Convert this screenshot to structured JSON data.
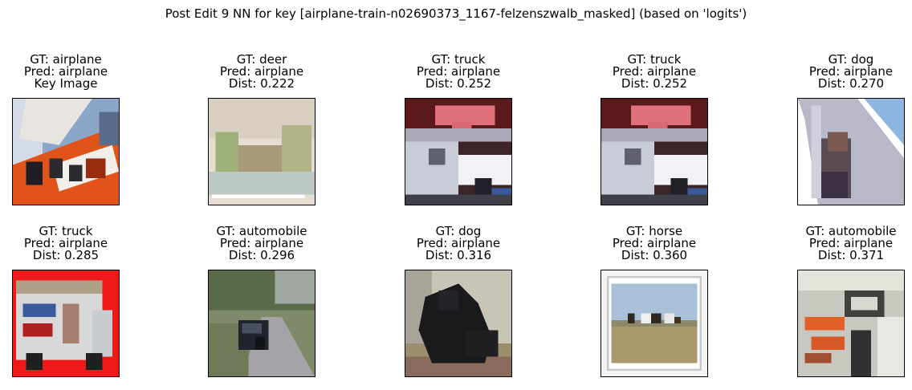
{
  "figure": {
    "title": "Post Edit 9 NN for key [airplane-train-n02690373_1167-felzenszwalb_masked] (based on 'logits')"
  },
  "panels": [
    {
      "gt": "GT: airplane",
      "pred": "Pred: airplane",
      "extra": "Key Image",
      "scene": "airplane-tail-icon"
    },
    {
      "gt": "GT: deer",
      "pred": "Pred: airplane",
      "extra": "Dist: 0.222",
      "scene": "pale-field-scene-icon"
    },
    {
      "gt": "GT: truck",
      "pred": "Pred: airplane",
      "extra": "Dist: 0.252",
      "scene": "truck-sign-icon"
    },
    {
      "gt": "GT: truck",
      "pred": "Pred: airplane",
      "extra": "Dist: 0.252",
      "scene": "truck-sign-icon"
    },
    {
      "gt": "GT: dog",
      "pred": "Pred: airplane",
      "extra": "Dist: 0.270",
      "scene": "dog-window-icon"
    },
    {
      "gt": "GT: truck",
      "pred": "Pred: airplane",
      "extra": "Dist: 0.285",
      "scene": "delivery-truck-icon"
    },
    {
      "gt": "GT: automobile",
      "pred": "Pred: airplane",
      "extra": "Dist: 0.296",
      "scene": "street-car-icon"
    },
    {
      "gt": "GT: dog",
      "pred": "Pred: airplane",
      "extra": "Dist: 0.316",
      "scene": "black-dog-icon"
    },
    {
      "gt": "GT: horse",
      "pred": "Pred: airplane",
      "extra": "Dist: 0.360",
      "scene": "horses-field-icon"
    },
    {
      "gt": "GT: automobile",
      "pred": "Pred: airplane",
      "extra": "Dist: 0.371",
      "scene": "vehicle-interior-icon"
    }
  ]
}
